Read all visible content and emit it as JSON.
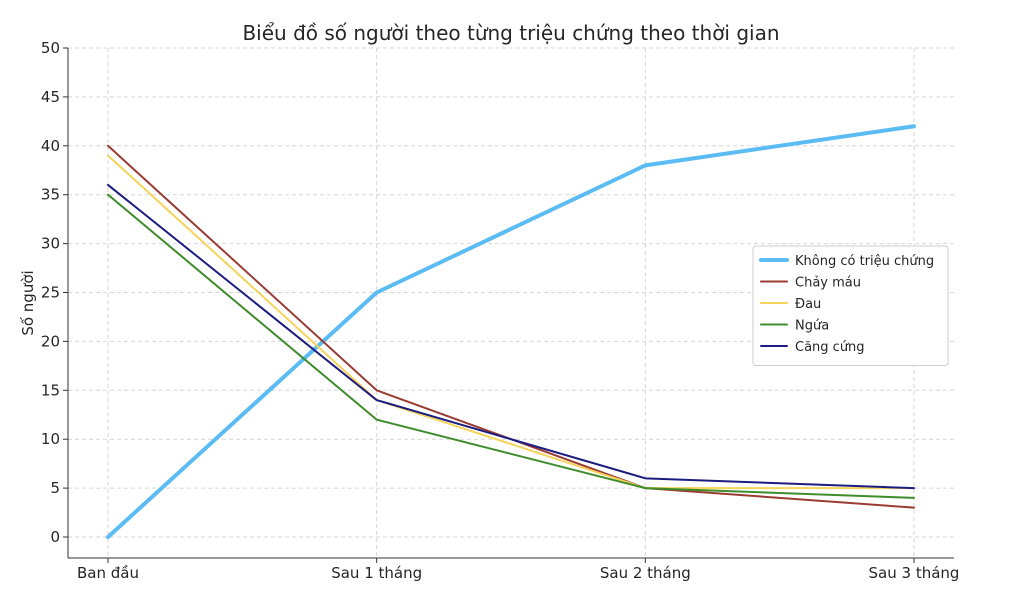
{
  "chart_data": {
    "type": "line",
    "title": "Biểu đồ số người theo từng triệu chứng theo thời gian",
    "xlabel": "",
    "ylabel": "Số người",
    "categories": [
      "Ban đầu",
      "Sau 1 tháng",
      "Sau 2 tháng",
      "Sau 3 tháng"
    ],
    "ylim": [
      0,
      50
    ],
    "yticks": [
      "0",
      "5",
      "10",
      "15",
      "20",
      "25",
      "30",
      "35",
      "40",
      "45",
      "50"
    ],
    "grid": true,
    "legend_position": "right",
    "series": [
      {
        "name": "Không có triệu chứng",
        "values": [
          0,
          25,
          38,
          42
        ],
        "color": "#5bbcf4",
        "bold": true
      },
      {
        "name": "Chảy máu",
        "values": [
          40,
          15,
          5,
          3
        ],
        "color": "#9a3b33",
        "bold": false
      },
      {
        "name": "Đau",
        "values": [
          39,
          14,
          5,
          5
        ],
        "color": "#f5d35b",
        "bold": false
      },
      {
        "name": "Ngứa",
        "values": [
          35,
          12,
          5,
          4
        ],
        "color": "#3f8c2b",
        "bold": false
      },
      {
        "name": "Căng cứng",
        "values": [
          36,
          14,
          6,
          5
        ],
        "color": "#1c1c80",
        "bold": false
      }
    ]
  }
}
